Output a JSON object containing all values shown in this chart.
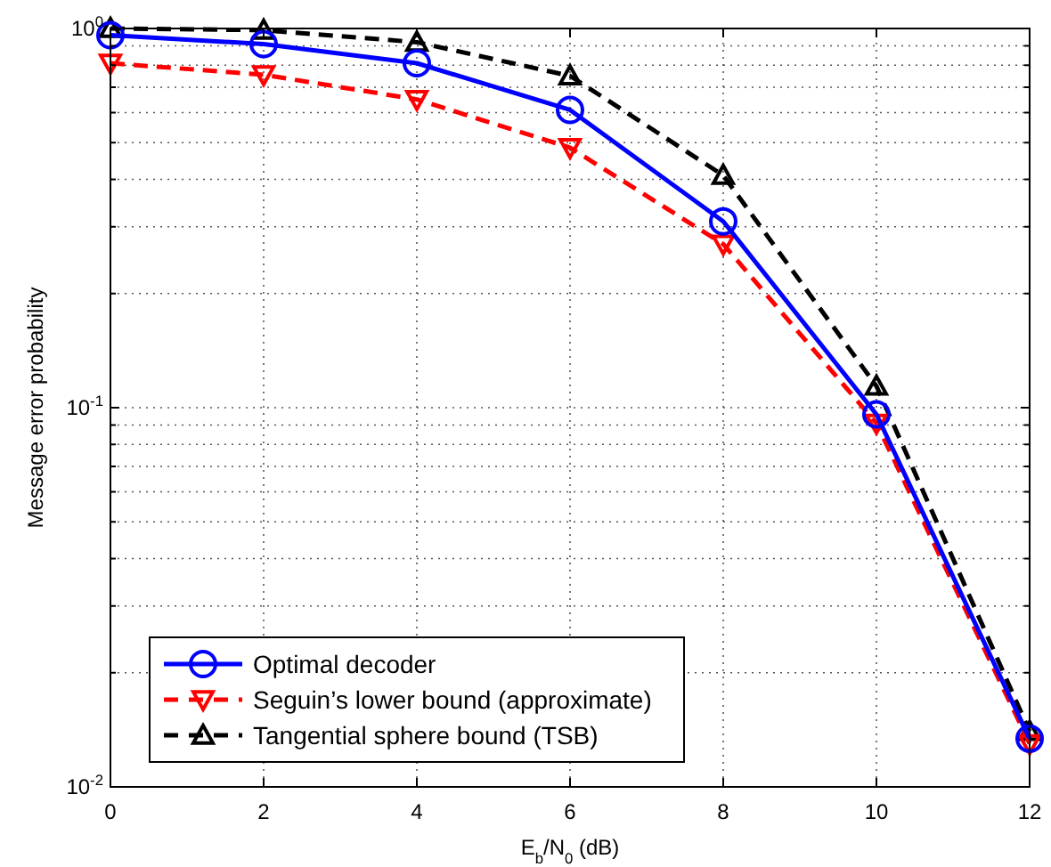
{
  "chart_data": {
    "type": "line",
    "xlabel": "E$_{b}$/N$_{0}$ (dB)",
    "ylabel": "Message error probability",
    "x": [
      0,
      2,
      4,
      6,
      8,
      10,
      12
    ],
    "series": [
      {
        "name": "Optimal decoder",
        "color": "#0000ff",
        "values": [
          0.96,
          0.91,
          0.81,
          0.61,
          0.31,
          0.096,
          0.0134
        ],
        "marker": "circle",
        "line_style": "solid"
      },
      {
        "name": "Seguin’s lower bound (approximate)",
        "color": "#ff0000",
        "values": [
          0.81,
          0.755,
          0.65,
          0.485,
          0.27,
          0.091,
          0.013
        ],
        "marker": "triangle-down",
        "line_style": "dashed"
      },
      {
        "name": "Tangential sphere bound (TSB)",
        "color": "#000000",
        "values": [
          1.0,
          0.99,
          0.92,
          0.75,
          0.41,
          0.114,
          0.014
        ],
        "marker": "triangle",
        "line_style": "dashed"
      }
    ],
    "xlim": [
      0,
      12
    ],
    "xticks": [
      0,
      2,
      4,
      6,
      8,
      10,
      12
    ],
    "ylim": [
      0.01,
      1
    ],
    "yticks": [
      {
        "value": 0.01,
        "label": "10$^{-2}$"
      },
      {
        "value": 0.1,
        "label": "10$^{-1}$"
      },
      {
        "value": 1,
        "label": "10$^{0}$"
      }
    ],
    "log": "y",
    "grid": true,
    "legend": "bottom left"
  }
}
